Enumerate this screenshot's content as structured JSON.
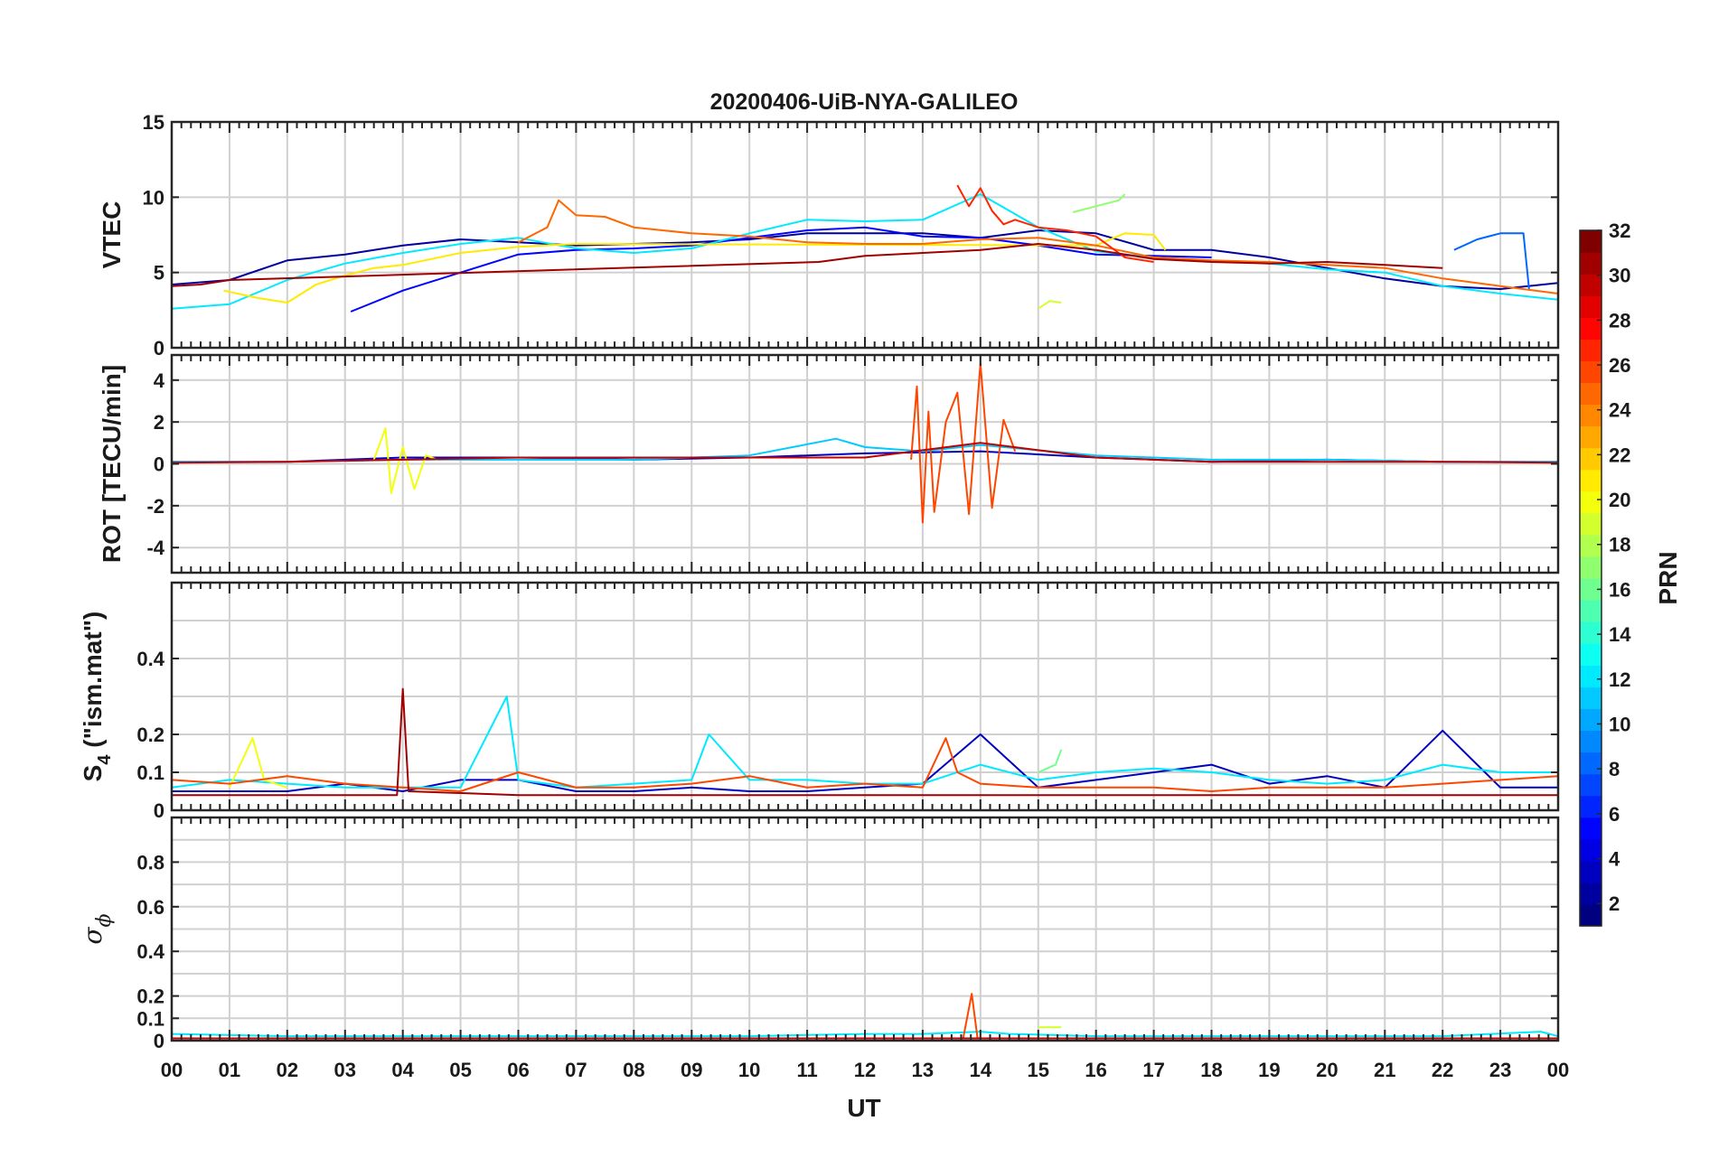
{
  "chart_data": {
    "title": "20200406-UiB-NYA-GALILEO",
    "type": "line",
    "xlabel": "UT",
    "x_ticks": [
      "00",
      "01",
      "02",
      "03",
      "04",
      "05",
      "06",
      "07",
      "08",
      "09",
      "10",
      "11",
      "12",
      "13",
      "14",
      "15",
      "16",
      "17",
      "18",
      "19",
      "20",
      "21",
      "22",
      "23",
      "00"
    ],
    "xlim": [
      0,
      24
    ],
    "grid": true,
    "panels": [
      {
        "id": "vtec",
        "ylabel": "VTEC",
        "ylim": [
          0,
          15
        ],
        "yticks": [
          "0",
          "5",
          "10",
          "15"
        ],
        "ytick_values": [
          0,
          5,
          10,
          15
        ],
        "series": [
          {
            "prn": 2,
            "x": [
              0,
              1,
              2,
              3,
              4,
              5,
              6,
              7,
              8,
              9,
              10,
              11,
              12,
              13,
              14,
              15,
              16,
              17,
              18,
              19,
              20,
              21,
              22,
              23,
              24
            ],
            "y": [
              4.2,
              4.5,
              5.8,
              6.2,
              6.8,
              7.2,
              7.0,
              6.8,
              6.9,
              7.0,
              7.2,
              7.6,
              7.6,
              7.6,
              7.3,
              7.8,
              7.6,
              6.5,
              6.5,
              6.0,
              5.3,
              4.6,
              4.1,
              3.9,
              4.3
            ]
          },
          {
            "prn": 5,
            "x": [
              3.1,
              4,
              5,
              6,
              7,
              8,
              9,
              10,
              11,
              12,
              13,
              14,
              15,
              16,
              17,
              18
            ],
            "y": [
              2.4,
              3.8,
              5.0,
              6.2,
              6.5,
              6.6,
              6.8,
              7.3,
              7.8,
              8.0,
              7.4,
              7.3,
              6.8,
              6.2,
              6.1,
              6.0
            ]
          },
          {
            "prn": 8,
            "x": [
              22.2,
              22.6,
              23.0,
              23.4,
              23.5
            ],
            "y": [
              6.5,
              7.2,
              7.6,
              7.6,
              3.8
            ]
          },
          {
            "prn": 12,
            "x": [
              0,
              1,
              2,
              3,
              4,
              5,
              6,
              7,
              8,
              9,
              10,
              11,
              12,
              13,
              14,
              15,
              16,
              17,
              18,
              19,
              20,
              21,
              22,
              23,
              24
            ],
            "y": [
              2.6,
              2.9,
              4.5,
              5.6,
              6.3,
              6.9,
              7.3,
              6.6,
              6.3,
              6.6,
              7.6,
              8.5,
              8.4,
              8.5,
              10.2,
              8.0,
              6.4,
              6.0,
              5.8,
              5.6,
              5.2,
              5.0,
              4.1,
              3.6,
              3.2
            ]
          },
          {
            "prn": 17,
            "x": [
              15.6,
              16.0,
              16.4,
              16.5
            ],
            "y": [
              9.0,
              9.4,
              9.8,
              10.2
            ]
          },
          {
            "prn": 19,
            "x": [
              15.0,
              15.2,
              15.4
            ],
            "y": [
              2.6,
              3.1,
              3.0
            ]
          },
          {
            "prn": 21,
            "x": [
              0.9,
              1.5,
              2.0,
              2.5,
              3,
              3.5,
              4,
              5,
              6,
              7,
              16,
              16.5,
              17,
              17.2
            ],
            "y": [
              3.8,
              3.3,
              3.0,
              4.2,
              4.8,
              5.3,
              5.5,
              6.3,
              6.7,
              6.9,
              6.8,
              7.6,
              7.5,
              6.5
            ]
          },
          {
            "prn": 25,
            "x": [
              6.0,
              6.5,
              6.7,
              7.0,
              7.5,
              8.0,
              9,
              10,
              11,
              12,
              13,
              14,
              15,
              16,
              17,
              18,
              19,
              20,
              21,
              22,
              23,
              24
            ],
            "y": [
              7.0,
              8.0,
              9.8,
              8.8,
              8.7,
              8.0,
              7.6,
              7.4,
              7.0,
              6.9,
              6.9,
              7.2,
              7.3,
              6.8,
              6.0,
              5.8,
              5.7,
              5.5,
              5.3,
              4.6,
              4.1,
              3.6
            ]
          },
          {
            "prn": 27,
            "x": [
              13.6,
              13.8,
              14.0,
              14.2,
              14.4,
              14.6,
              15,
              15.5,
              16,
              16.5,
              17
            ],
            "y": [
              10.8,
              9.4,
              10.6,
              9.1,
              8.2,
              8.5,
              8.0,
              7.8,
              7.4,
              6.0,
              5.7
            ]
          },
          {
            "prn": 31,
            "x": [
              0,
              0.5,
              1.0,
              11.2,
              12,
              13,
              14,
              15,
              16,
              17,
              18,
              19,
              20,
              21,
              22
            ],
            "y": [
              4.1,
              4.2,
              4.5,
              5.7,
              6.1,
              6.3,
              6.5,
              6.9,
              6.5,
              5.9,
              5.7,
              5.6,
              5.7,
              5.5,
              5.3
            ]
          }
        ]
      },
      {
        "id": "rot",
        "ylabel": "ROT [TECU/min]",
        "ylim": [
          -5.2,
          5.2
        ],
        "yticks": [
          "-4",
          "-2",
          "0",
          "2",
          "4"
        ],
        "ytick_values": [
          -4,
          -2,
          0,
          2,
          4
        ],
        "series": [
          {
            "prn": 3,
            "x": [
              0,
              2,
              4,
              6,
              8,
              10,
              12,
              14,
              16,
              18,
              20,
              22,
              24
            ],
            "y": [
              0.1,
              0.1,
              0.3,
              0.3,
              0.2,
              0.3,
              0.5,
              0.6,
              0.3,
              0.1,
              0.2,
              0.1,
              0.1
            ]
          },
          {
            "prn": 11,
            "x": [
              0,
              2,
              4,
              6,
              8,
              10,
              11.5,
              12,
              13,
              14,
              16,
              18,
              20,
              22,
              24
            ],
            "y": [
              0.1,
              0.1,
              0.2,
              0.2,
              0.2,
              0.4,
              1.2,
              0.8,
              0.6,
              0.9,
              0.4,
              0.2,
              0.2,
              0.1,
              0.1
            ]
          },
          {
            "prn": 20,
            "x": [
              3.5,
              3.7,
              3.8,
              4.0,
              4.2,
              4.4,
              4.6
            ],
            "y": [
              0.2,
              1.7,
              -1.4,
              0.8,
              -1.2,
              0.4,
              0.2
            ]
          },
          {
            "prn": 26,
            "x": [
              12.8,
              12.9,
              13.0,
              13.1,
              13.2,
              13.4,
              13.6,
              13.8,
              14.0,
              14.2,
              14.4,
              14.6
            ],
            "y": [
              0.2,
              3.7,
              -2.8,
              2.5,
              -2.3,
              2.0,
              3.4,
              -2.4,
              4.8,
              -2.1,
              2.1,
              0.6
            ]
          },
          {
            "prn": 30,
            "x": [
              0,
              2,
              4,
              6,
              8,
              10,
              12,
              14,
              16,
              18,
              20,
              22,
              24
            ],
            "y": [
              0.05,
              0.1,
              0.2,
              0.3,
              0.3,
              0.3,
              0.3,
              1.0,
              0.3,
              0.1,
              0.1,
              0.1,
              0.05
            ]
          }
        ]
      },
      {
        "id": "s4",
        "ylabel_base": "S",
        "ylabel_sub": "4",
        "ylabel_tail": " (\"ism.mat\")",
        "ylim": [
          0,
          0.6
        ],
        "yticks": [
          "0",
          "0.1",
          "0.2",
          "0.4"
        ],
        "ytick_values": [
          0,
          0.1,
          0.2,
          0.4
        ],
        "gridlines": [
          0.1,
          0.2,
          0.3,
          0.4,
          0.5
        ],
        "series": [
          {
            "prn": 3,
            "x": [
              0,
              1,
              2,
              3,
              4,
              5,
              6,
              7,
              8,
              9,
              10,
              11,
              12,
              13,
              14,
              15,
              16,
              17,
              18,
              19,
              20,
              21,
              22,
              23,
              24
            ],
            "y": [
              0.05,
              0.05,
              0.05,
              0.07,
              0.05,
              0.08,
              0.08,
              0.05,
              0.05,
              0.06,
              0.05,
              0.05,
              0.06,
              0.07,
              0.2,
              0.06,
              0.08,
              0.1,
              0.12,
              0.07,
              0.09,
              0.06,
              0.21,
              0.06,
              0.06
            ]
          },
          {
            "prn": 12,
            "x": [
              0,
              1,
              2,
              3,
              4,
              5,
              5.8,
              6,
              7,
              8,
              9,
              9.3,
              10,
              11,
              12,
              13,
              14,
              15,
              16,
              17,
              18,
              19,
              20,
              21,
              22,
              23,
              24
            ],
            "y": [
              0.06,
              0.08,
              0.07,
              0.06,
              0.06,
              0.06,
              0.3,
              0.08,
              0.06,
              0.07,
              0.08,
              0.2,
              0.08,
              0.08,
              0.07,
              0.07,
              0.12,
              0.08,
              0.1,
              0.11,
              0.1,
              0.08,
              0.07,
              0.08,
              0.12,
              0.1,
              0.1
            ]
          },
          {
            "prn": 16,
            "x": [
              15.0,
              15.3,
              15.4
            ],
            "y": [
              0.1,
              0.12,
              0.16
            ]
          },
          {
            "prn": 20,
            "x": [
              1.0,
              1.4,
              1.6,
              2.0
            ],
            "y": [
              0.06,
              0.19,
              0.08,
              0.06
            ]
          },
          {
            "prn": 26,
            "x": [
              0,
              1,
              2,
              3,
              4,
              5,
              6,
              7,
              8,
              9,
              10,
              11,
              12,
              13,
              13.4,
              13.6,
              14,
              15,
              16,
              17,
              18,
              19,
              20,
              21,
              22,
              23,
              24
            ],
            "y": [
              0.08,
              0.07,
              0.09,
              0.07,
              0.06,
              0.05,
              0.1,
              0.06,
              0.06,
              0.07,
              0.09,
              0.06,
              0.07,
              0.06,
              0.19,
              0.1,
              0.07,
              0.06,
              0.06,
              0.06,
              0.05,
              0.06,
              0.06,
              0.06,
              0.07,
              0.08,
              0.09
            ]
          },
          {
            "prn": 31,
            "x": [
              0,
              2,
              3.9,
              4.0,
              4.1,
              6,
              8,
              10,
              12,
              14,
              16,
              18,
              20,
              22,
              24
            ],
            "y": [
              0.04,
              0.04,
              0.04,
              0.32,
              0.05,
              0.04,
              0.04,
              0.04,
              0.04,
              0.04,
              0.04,
              0.04,
              0.04,
              0.04,
              0.04
            ]
          }
        ]
      },
      {
        "id": "sigma_phi",
        "ylabel": "σ",
        "ylabel_sub": "ϕ",
        "ylim": [
          0,
          1
        ],
        "yticks": [
          "0",
          "0.1",
          "0.2",
          "0.4",
          "0.6",
          "0.8"
        ],
        "ytick_values": [
          0,
          0.1,
          0.2,
          0.4,
          0.6,
          0.8
        ],
        "gridlines": [
          0.1,
          0.2,
          0.3,
          0.4,
          0.5,
          0.6,
          0.7,
          0.8,
          0.9
        ],
        "series": [
          {
            "prn": 12,
            "x": [
              0,
              2,
              4,
              6,
              8,
              10,
              12,
              13,
              14,
              14.5,
              16,
              18,
              20,
              22,
              23.7,
              24
            ],
            "y": [
              0.03,
              0.02,
              0.02,
              0.02,
              0.02,
              0.02,
              0.03,
              0.03,
              0.04,
              0.03,
              0.02,
              0.02,
              0.02,
              0.02,
              0.04,
              0.02
            ]
          },
          {
            "prn": 19,
            "x": [
              15.0,
              15.4
            ],
            "y": [
              0.06,
              0.06
            ]
          },
          {
            "prn": 26,
            "x": [
              0,
              4,
              8,
              12,
              13.7,
              13.85,
              13.95,
              14.2,
              16,
              20,
              24
            ],
            "y": [
              0.01,
              0.01,
              0.01,
              0.01,
              0.01,
              0.21,
              0.01,
              0.01,
              0.01,
              0.01,
              0.01
            ]
          },
          {
            "prn": 30,
            "x": [
              0,
              6,
              12,
              18,
              24
            ],
            "y": [
              0.01,
              0.01,
              0.01,
              0.01,
              0.01
            ]
          }
        ]
      }
    ],
    "colorbar": {
      "label": "PRN",
      "range": [
        1,
        32
      ],
      "ticks": [
        "2",
        "4",
        "6",
        "8",
        "10",
        "12",
        "14",
        "16",
        "18",
        "20",
        "22",
        "24",
        "26",
        "28",
        "30",
        "32"
      ],
      "tick_values": [
        2,
        4,
        6,
        8,
        10,
        12,
        14,
        16,
        18,
        20,
        22,
        24,
        26,
        28,
        30,
        32
      ],
      "colormap": "jet"
    }
  }
}
